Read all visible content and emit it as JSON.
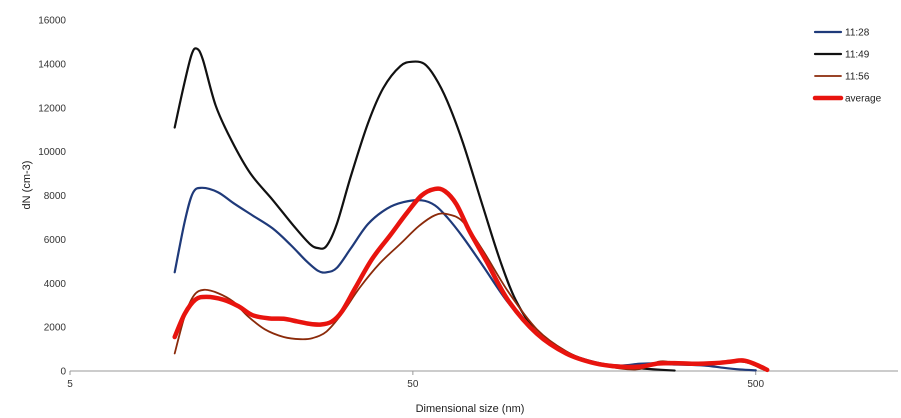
{
  "chart_data": {
    "type": "line",
    "xlabel": "Dimensional size (nm)",
    "ylabel": "dN (cm-3)",
    "x_scale": "log",
    "xlim": [
      5,
      1300
    ],
    "ylim": [
      0,
      16000
    ],
    "x_ticks": [
      5,
      50,
      500
    ],
    "y_ticks": [
      0,
      2000,
      4000,
      6000,
      8000,
      10000,
      12000,
      14000,
      16000
    ],
    "grid": false,
    "legend_position": "top-right",
    "series": [
      {
        "name": "11:28",
        "color": "#1f3a7a",
        "width": 2.2,
        "points": [
          [
            10.1,
            4500
          ],
          [
            10.8,
            6800
          ],
          [
            11.4,
            8100
          ],
          [
            12.1,
            8350
          ],
          [
            13.5,
            8150
          ],
          [
            15,
            7650
          ],
          [
            17,
            7100
          ],
          [
            19.5,
            6500
          ],
          [
            22,
            5750
          ],
          [
            24.5,
            5000
          ],
          [
            26.5,
            4560
          ],
          [
            28,
            4500
          ],
          [
            30,
            4700
          ],
          [
            33,
            5600
          ],
          [
            37,
            6700
          ],
          [
            42,
            7400
          ],
          [
            47,
            7700
          ],
          [
            53,
            7780
          ],
          [
            58,
            7550
          ],
          [
            63,
            7000
          ],
          [
            70,
            6100
          ],
          [
            80,
            4800
          ],
          [
            95,
            3100
          ],
          [
            115,
            1650
          ],
          [
            140,
            850
          ],
          [
            170,
            400
          ],
          [
            200,
            250
          ],
          [
            230,
            330
          ],
          [
            255,
            350
          ],
          [
            285,
            300
          ],
          [
            320,
            280
          ],
          [
            360,
            240
          ],
          [
            400,
            150
          ],
          [
            450,
            70
          ],
          [
            500,
            30
          ]
        ]
      },
      {
        "name": "11:49",
        "color": "#111111",
        "width": 2.2,
        "points": [
          [
            10.1,
            11100
          ],
          [
            10.7,
            12900
          ],
          [
            11.3,
            14400
          ],
          [
            11.7,
            14700
          ],
          [
            12.2,
            14200
          ],
          [
            13.3,
            12100
          ],
          [
            14.8,
            10500
          ],
          [
            16.8,
            9000
          ],
          [
            19.5,
            7800
          ],
          [
            22.5,
            6600
          ],
          [
            25,
            5800
          ],
          [
            26.5,
            5600
          ],
          [
            28,
            5700
          ],
          [
            30,
            6700
          ],
          [
            33,
            8900
          ],
          [
            37,
            11300
          ],
          [
            41,
            12900
          ],
          [
            46,
            13900
          ],
          [
            50,
            14100
          ],
          [
            54,
            14000
          ],
          [
            58,
            13400
          ],
          [
            63,
            12300
          ],
          [
            70,
            10400
          ],
          [
            80,
            7500
          ],
          [
            90,
            5000
          ],
          [
            100,
            3200
          ],
          [
            115,
            1750
          ],
          [
            135,
            950
          ],
          [
            160,
            500
          ],
          [
            190,
            250
          ],
          [
            220,
            150
          ],
          [
            250,
            80
          ],
          [
            290,
            20
          ]
        ]
      },
      {
        "name": "11:56",
        "color": "#8b2a0a",
        "width": 1.8,
        "points": [
          [
            10.1,
            800
          ],
          [
            10.8,
            2500
          ],
          [
            11.5,
            3450
          ],
          [
            12.3,
            3700
          ],
          [
            13.5,
            3550
          ],
          [
            15,
            3150
          ],
          [
            16.5,
            2500
          ],
          [
            18.5,
            1900
          ],
          [
            21,
            1550
          ],
          [
            23.5,
            1450
          ],
          [
            25.5,
            1500
          ],
          [
            28,
            1800
          ],
          [
            31,
            2600
          ],
          [
            35,
            3800
          ],
          [
            40,
            4900
          ],
          [
            46,
            5800
          ],
          [
            52,
            6600
          ],
          [
            58,
            7100
          ],
          [
            63,
            7150
          ],
          [
            70,
            6800
          ],
          [
            80,
            5500
          ],
          [
            95,
            3600
          ],
          [
            115,
            1900
          ],
          [
            140,
            900
          ],
          [
            170,
            350
          ],
          [
            200,
            120
          ],
          [
            230,
            90
          ],
          [
            260,
            420
          ],
          [
            280,
            420
          ],
          [
            310,
            350
          ],
          [
            350,
            330
          ],
          [
            400,
            380
          ],
          [
            450,
            430
          ],
          [
            480,
            350
          ],
          [
            520,
            100
          ]
        ]
      },
      {
        "name": "average",
        "color": "#e8140e",
        "width": 4.5,
        "points": [
          [
            10.1,
            1550
          ],
          [
            10.8,
            2600
          ],
          [
            11.6,
            3250
          ],
          [
            12.5,
            3380
          ],
          [
            14,
            3250
          ],
          [
            15.5,
            2950
          ],
          [
            17,
            2550
          ],
          [
            19,
            2400
          ],
          [
            21,
            2380
          ],
          [
            23,
            2260
          ],
          [
            25,
            2150
          ],
          [
            27,
            2120
          ],
          [
            29,
            2250
          ],
          [
            31,
            2700
          ],
          [
            34,
            3800
          ],
          [
            38,
            5100
          ],
          [
            43,
            6200
          ],
          [
            48,
            7200
          ],
          [
            53,
            8000
          ],
          [
            58,
            8300
          ],
          [
            62,
            8200
          ],
          [
            67,
            7600
          ],
          [
            73,
            6400
          ],
          [
            82,
            5000
          ],
          [
            95,
            3200
          ],
          [
            115,
            1700
          ],
          [
            140,
            800
          ],
          [
            170,
            350
          ],
          [
            200,
            200
          ],
          [
            230,
            200
          ],
          [
            260,
            340
          ],
          [
            290,
            360
          ],
          [
            330,
            330
          ],
          [
            380,
            360
          ],
          [
            420,
            420
          ],
          [
            460,
            480
          ],
          [
            500,
            300
          ],
          [
            540,
            50
          ]
        ]
      }
    ]
  }
}
